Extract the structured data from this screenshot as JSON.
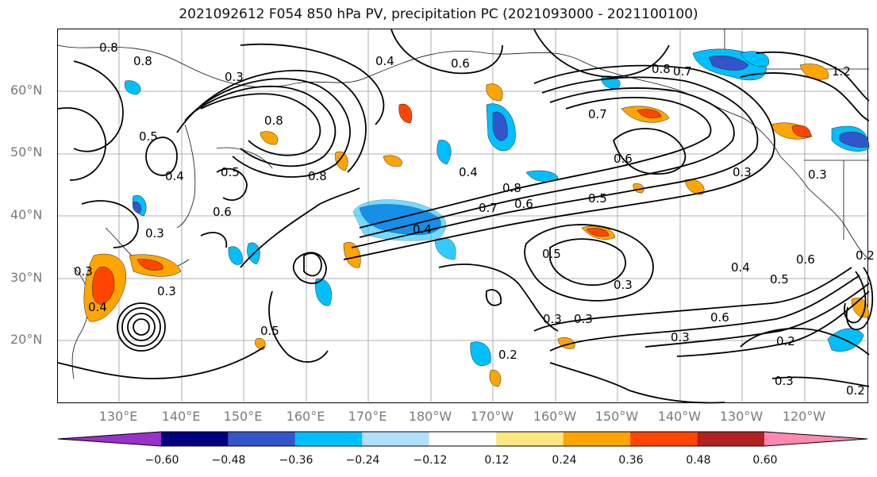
{
  "title": "2021092612 F054 850 hPa PV, precipitation PC (2021093000 - 2021100100)",
  "map": {
    "lat_labels": [
      "60°N",
      "50°N",
      "40°N",
      "30°N",
      "20°N"
    ],
    "lon_labels": [
      "130°E",
      "140°E",
      "150°E",
      "160°E",
      "170°E",
      "180°W",
      "170°W",
      "160°W",
      "150°W",
      "140°W",
      "130°W",
      "120°W"
    ],
    "contour_labels": [
      "0.8",
      "0.8",
      "0.4",
      "0.6",
      "1.2",
      "0.8",
      "0.7",
      "0.3",
      "0.8",
      "0.7",
      "0.5",
      "0.4",
      "0.6",
      "0.5",
      "0.8",
      "0.4",
      "0.6",
      "0.8",
      "0.7",
      "0.6",
      "0.5",
      "0.4",
      "0.3",
      "0.5",
      "0.3",
      "0.3",
      "0.4",
      "0.5",
      "0.6",
      "0.6",
      "0.3",
      "0.3",
      "0.2",
      "0.2",
      "0.3",
      "0.2",
      "0.3",
      "0.3",
      "0.2",
      "0.5",
      "0.4",
      "0.3",
      "0.3"
    ]
  },
  "colorbar": {
    "colors": [
      "#9932cc",
      "#000080",
      "#3355cc",
      "#00bfff",
      "#b0e0ff",
      "#ffffff",
      "#ffe680",
      "#ffa500",
      "#ff4500",
      "#b22222",
      "#ff88b0"
    ],
    "tick_labels": [
      "−0.60",
      "−0.48",
      "−0.36",
      "−0.24",
      "−0.12",
      "0.12",
      "0.24",
      "0.36",
      "0.48",
      "0.60"
    ]
  }
}
